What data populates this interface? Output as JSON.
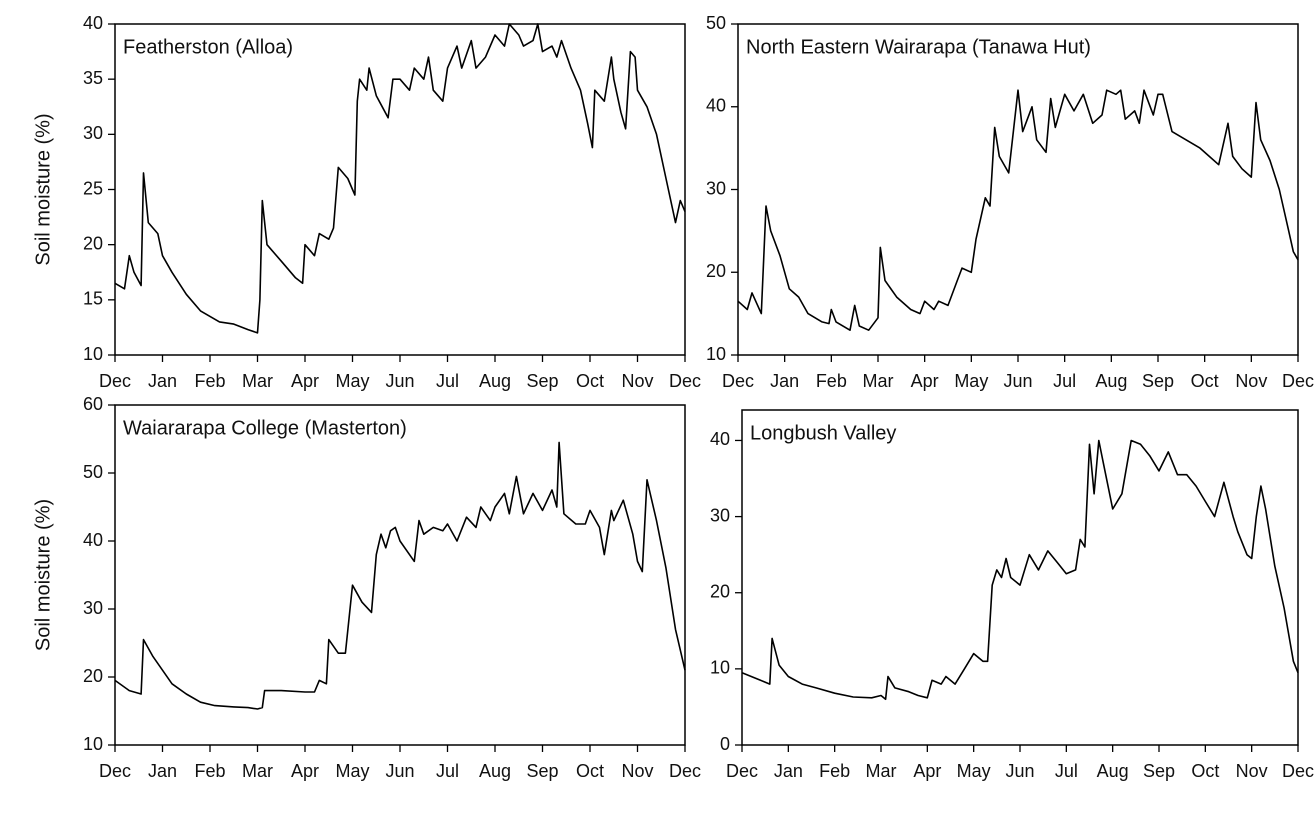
{
  "chart_data": [
    {
      "type": "line",
      "title": "Featherston (Alloa)",
      "ylabel": "Soil moisture (%)",
      "color": "#000000",
      "xlim": [
        0,
        12
      ],
      "ylim": [
        10,
        40
      ],
      "yticks": [
        10,
        15,
        20,
        25,
        30,
        35,
        40
      ],
      "xticks": [
        {
          "value": 0,
          "label": "Dec"
        },
        {
          "value": 1,
          "label": "Jan"
        },
        {
          "value": 2,
          "label": "Feb"
        },
        {
          "value": 3,
          "label": "Mar"
        },
        {
          "value": 4,
          "label": "Apr"
        },
        {
          "value": 5,
          "label": "May"
        },
        {
          "value": 6,
          "label": "Jun"
        },
        {
          "value": 7,
          "label": "Jul"
        },
        {
          "value": 8,
          "label": "Aug"
        },
        {
          "value": 9,
          "label": "Sep"
        },
        {
          "value": 10,
          "label": "Oct"
        },
        {
          "value": 11,
          "label": "Nov"
        },
        {
          "value": 12,
          "label": "Dec"
        }
      ],
      "x": [
        0,
        0.2,
        0.3,
        0.4,
        0.55,
        0.6,
        0.7,
        0.9,
        1.0,
        1.2,
        1.5,
        1.8,
        2.0,
        2.2,
        2.5,
        2.8,
        3.0,
        3.05,
        3.1,
        3.2,
        3.5,
        3.8,
        3.95,
        4.0,
        4.2,
        4.3,
        4.5,
        4.6,
        4.7,
        4.9,
        5.0,
        5.05,
        5.1,
        5.15,
        5.3,
        5.35,
        5.5,
        5.75,
        5.85,
        6.0,
        6.2,
        6.3,
        6.5,
        6.6,
        6.7,
        6.9,
        7.0,
        7.2,
        7.3,
        7.5,
        7.6,
        7.8,
        8.0,
        8.2,
        8.3,
        8.5,
        8.6,
        8.8,
        8.9,
        9.0,
        9.2,
        9.3,
        9.4,
        9.6,
        9.8,
        9.95,
        10.05,
        10.1,
        10.3,
        10.45,
        10.5,
        10.65,
        10.75,
        10.85,
        10.95,
        11.0,
        11.2,
        11.4,
        11.6,
        11.8,
        11.9,
        12.0
      ],
      "values": [
        16.5,
        16,
        19,
        17.5,
        16.3,
        26.5,
        22,
        21,
        19,
        17.5,
        15.5,
        14,
        13.5,
        13,
        12.8,
        12.3,
        12,
        15,
        24,
        20,
        18.5,
        17,
        16.5,
        20,
        19,
        21,
        20.5,
        21.5,
        27,
        26,
        25,
        24.5,
        33,
        35,
        34,
        36,
        33.5,
        31.5,
        35,
        35,
        34,
        36,
        35,
        37,
        34,
        33,
        36,
        38,
        36,
        38.5,
        36,
        37,
        39,
        38,
        40,
        39,
        38,
        38.5,
        40,
        37.5,
        38,
        37,
        38.5,
        36,
        34,
        31,
        28.8,
        34,
        33,
        37,
        35,
        32,
        30.5,
        37.5,
        37,
        34,
        32.5,
        30,
        26,
        22,
        24,
        23
      ]
    },
    {
      "type": "line",
      "title": "North Eastern Wairarapa (Tanawa Hut)",
      "color": "#000000",
      "xlim": [
        0,
        12
      ],
      "ylim": [
        10,
        50
      ],
      "yticks": [
        10,
        20,
        30,
        40,
        50
      ],
      "xticks": [
        {
          "value": 0,
          "label": "Dec"
        },
        {
          "value": 1,
          "label": "Jan"
        },
        {
          "value": 2,
          "label": "Feb"
        },
        {
          "value": 3,
          "label": "Mar"
        },
        {
          "value": 4,
          "label": "Apr"
        },
        {
          "value": 5,
          "label": "May"
        },
        {
          "value": 6,
          "label": "Jun"
        },
        {
          "value": 7,
          "label": "Jul"
        },
        {
          "value": 8,
          "label": "Aug"
        },
        {
          "value": 9,
          "label": "Sep"
        },
        {
          "value": 10,
          "label": "Oct"
        },
        {
          "value": 11,
          "label": "Nov"
        },
        {
          "value": 12,
          "label": "Dec"
        }
      ],
      "x": [
        0,
        0.2,
        0.3,
        0.5,
        0.6,
        0.7,
        0.9,
        1.1,
        1.3,
        1.5,
        1.8,
        1.95,
        2.0,
        2.1,
        2.4,
        2.5,
        2.6,
        2.8,
        3.0,
        3.05,
        3.15,
        3.4,
        3.7,
        3.9,
        4.0,
        4.2,
        4.3,
        4.5,
        4.7,
        4.8,
        5.0,
        5.1,
        5.3,
        5.4,
        5.5,
        5.6,
        5.8,
        6.0,
        6.1,
        6.3,
        6.4,
        6.6,
        6.7,
        6.8,
        7.0,
        7.2,
        7.4,
        7.6,
        7.8,
        7.9,
        8.1,
        8.2,
        8.3,
        8.5,
        8.6,
        8.7,
        8.9,
        9.0,
        9.1,
        9.3,
        9.6,
        9.9,
        10.1,
        10.3,
        10.5,
        10.6,
        10.8,
        11.0,
        11.1,
        11.2,
        11.4,
        11.6,
        11.8,
        11.9,
        12.0
      ],
      "values": [
        16.5,
        15.5,
        17.5,
        15,
        28,
        25,
        22,
        18,
        17,
        15,
        14,
        13.8,
        15.5,
        14,
        13,
        16,
        13.5,
        13,
        14.5,
        23,
        19,
        17,
        15.5,
        15,
        16.5,
        15.5,
        16.5,
        16,
        19,
        20.5,
        20,
        24,
        29,
        28,
        37.5,
        34,
        32,
        42,
        37,
        40,
        36,
        34.5,
        41,
        37.5,
        41.5,
        39.5,
        41.5,
        38,
        39,
        42,
        41.5,
        42,
        38.5,
        39.5,
        38,
        42,
        39,
        41.5,
        41.5,
        37,
        36,
        35,
        34,
        33,
        38,
        34,
        32.5,
        31.5,
        40.5,
        36,
        33.5,
        30,
        25,
        22.5,
        21.5
      ]
    },
    {
      "type": "line",
      "title": "Waiararapa College (Masterton)",
      "ylabel": "Soil moisture (%)",
      "color": "#000000",
      "xlim": [
        0,
        12
      ],
      "ylim": [
        10,
        60
      ],
      "yticks": [
        10,
        20,
        30,
        40,
        50,
        60
      ],
      "xticks": [
        {
          "value": 0,
          "label": "Dec"
        },
        {
          "value": 1,
          "label": "Jan"
        },
        {
          "value": 2,
          "label": "Feb"
        },
        {
          "value": 3,
          "label": "Mar"
        },
        {
          "value": 4,
          "label": "Apr"
        },
        {
          "value": 5,
          "label": "May"
        },
        {
          "value": 6,
          "label": "Jun"
        },
        {
          "value": 7,
          "label": "Jul"
        },
        {
          "value": 8,
          "label": "Aug"
        },
        {
          "value": 9,
          "label": "Sep"
        },
        {
          "value": 10,
          "label": "Oct"
        },
        {
          "value": 11,
          "label": "Nov"
        },
        {
          "value": 12,
          "label": "Dec"
        }
      ],
      "x": [
        0,
        0.3,
        0.55,
        0.6,
        0.8,
        1.0,
        1.2,
        1.5,
        1.8,
        2.1,
        2.5,
        2.8,
        3.0,
        3.1,
        3.15,
        3.5,
        4.0,
        4.2,
        4.3,
        4.45,
        4.5,
        4.7,
        4.85,
        5.0,
        5.2,
        5.4,
        5.5,
        5.6,
        5.7,
        5.8,
        5.9,
        6.0,
        6.3,
        6.4,
        6.5,
        6.7,
        6.9,
        7.0,
        7.2,
        7.4,
        7.6,
        7.7,
        7.9,
        8.0,
        8.2,
        8.3,
        8.45,
        8.6,
        8.8,
        9.0,
        9.2,
        9.3,
        9.35,
        9.45,
        9.7,
        9.9,
        10.0,
        10.2,
        10.3,
        10.45,
        10.5,
        10.7,
        10.9,
        11.0,
        11.1,
        11.2,
        11.4,
        11.6,
        11.8,
        12.0
      ],
      "values": [
        19.5,
        18,
        17.5,
        25.5,
        23,
        21,
        19,
        17.5,
        16.3,
        15.8,
        15.6,
        15.5,
        15.3,
        15.5,
        18,
        18,
        17.8,
        17.8,
        19.5,
        19,
        25.5,
        23.5,
        23.5,
        33.5,
        31,
        29.5,
        38,
        41,
        39,
        41.5,
        42,
        40,
        37,
        43,
        41,
        42,
        41.5,
        42.5,
        40,
        43.5,
        42,
        45,
        43,
        45,
        47,
        44,
        49.5,
        44,
        47,
        44.5,
        47.5,
        45,
        54.5,
        44,
        42.5,
        42.5,
        44.5,
        42,
        38,
        44.5,
        43,
        46,
        41,
        37,
        35.5,
        49,
        43,
        36,
        27,
        21
      ]
    },
    {
      "type": "line",
      "title": "Longbush Valley",
      "color": "#000000",
      "xlim": [
        0,
        12
      ],
      "ylim": [
        0,
        44
      ],
      "yticks": [
        0,
        10,
        20,
        30,
        40
      ],
      "xticks": [
        {
          "value": 0,
          "label": "Dec"
        },
        {
          "value": 1,
          "label": "Jan"
        },
        {
          "value": 2,
          "label": "Feb"
        },
        {
          "value": 3,
          "label": "Mar"
        },
        {
          "value": 4,
          "label": "Apr"
        },
        {
          "value": 5,
          "label": "May"
        },
        {
          "value": 6,
          "label": "Jun"
        },
        {
          "value": 7,
          "label": "Jul"
        },
        {
          "value": 8,
          "label": "Aug"
        },
        {
          "value": 9,
          "label": "Sep"
        },
        {
          "value": 10,
          "label": "Oct"
        },
        {
          "value": 11,
          "label": "Nov"
        },
        {
          "value": 12,
          "label": "Dec"
        }
      ],
      "x": [
        0,
        0.4,
        0.6,
        0.65,
        0.8,
        1.0,
        1.3,
        1.6,
        2.0,
        2.4,
        2.8,
        3.0,
        3.1,
        3.15,
        3.3,
        3.6,
        3.8,
        4.0,
        4.1,
        4.3,
        4.4,
        4.6,
        4.8,
        5.0,
        5.2,
        5.3,
        5.4,
        5.5,
        5.6,
        5.7,
        5.8,
        6.0,
        6.2,
        6.4,
        6.6,
        6.8,
        7.0,
        7.2,
        7.3,
        7.4,
        7.5,
        7.6,
        7.7,
        7.8,
        8.0,
        8.2,
        8.4,
        8.6,
        8.8,
        9.0,
        9.2,
        9.4,
        9.6,
        9.8,
        10.0,
        10.2,
        10.4,
        10.6,
        10.7,
        10.9,
        11.0,
        11.1,
        11.2,
        11.3,
        11.5,
        11.7,
        11.9,
        12.0
      ],
      "values": [
        9.5,
        8.5,
        8,
        14,
        10.5,
        9,
        8,
        7.5,
        6.8,
        6.3,
        6.2,
        6.5,
        6,
        9,
        7.5,
        7,
        6.5,
        6.2,
        8.5,
        8,
        9,
        8,
        10,
        12,
        11,
        11,
        21,
        23,
        22,
        24.5,
        22,
        21,
        25,
        23,
        25.5,
        24,
        22.5,
        23,
        27,
        26,
        39.5,
        33,
        40,
        37,
        31,
        33,
        40,
        39.5,
        38,
        36,
        38.5,
        35.5,
        35.5,
        34,
        32,
        30,
        34.5,
        30,
        28,
        25,
        24.5,
        30,
        34,
        31,
        23.5,
        18,
        11,
        9.5
      ]
    }
  ]
}
